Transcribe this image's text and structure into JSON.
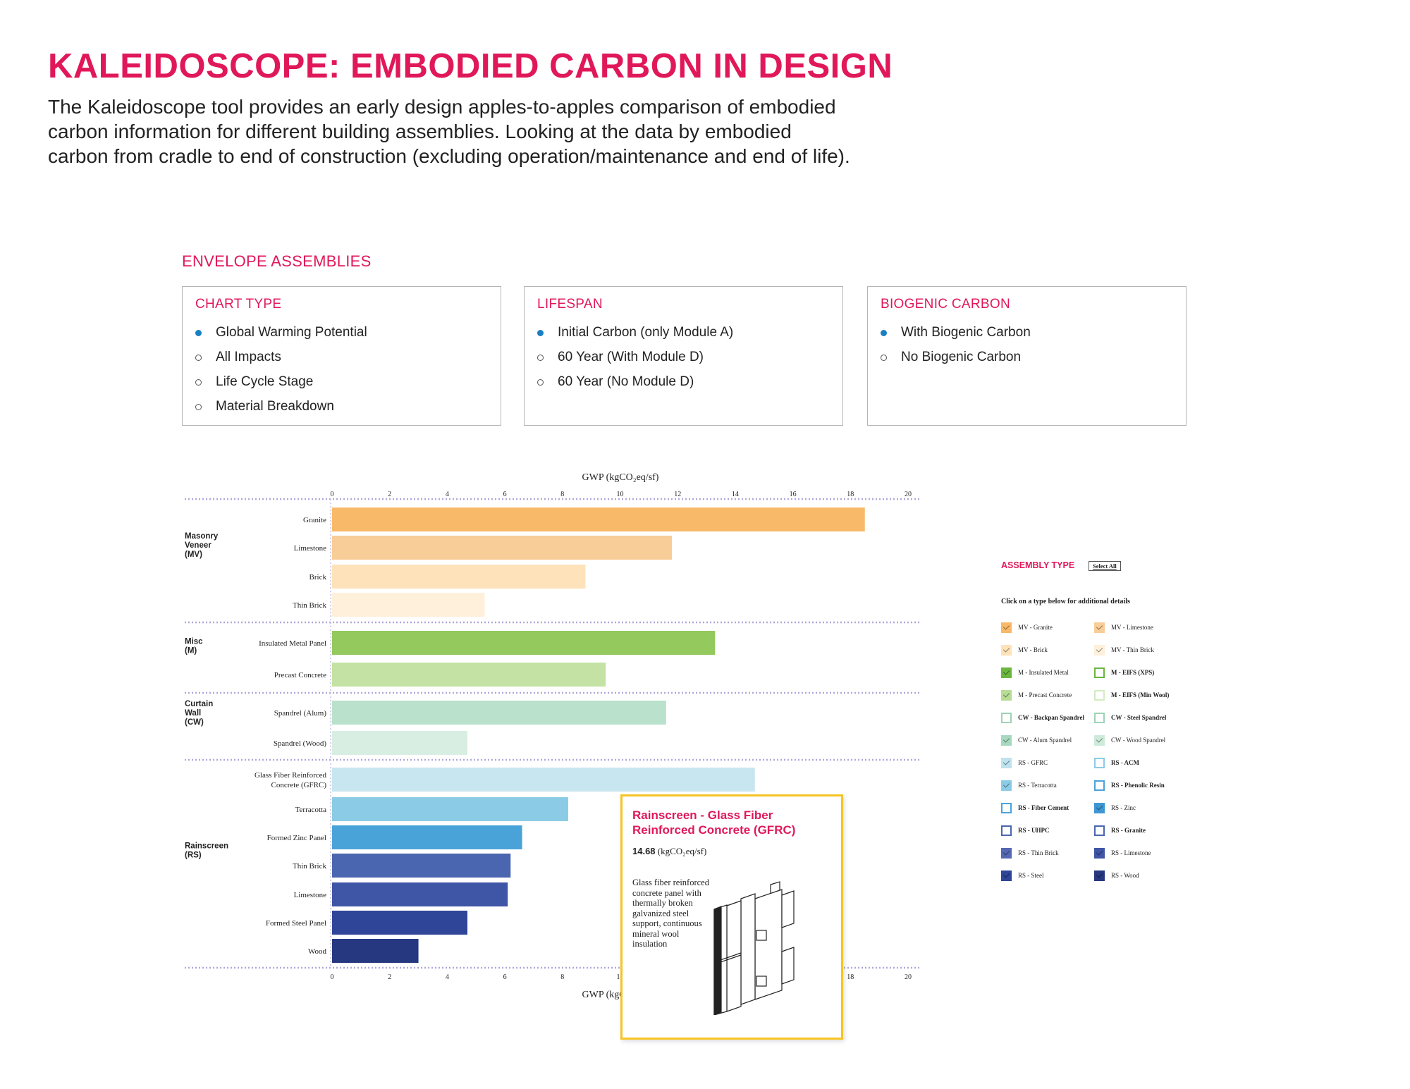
{
  "page": {
    "title": "KALEIDOSCOPE: EMBODIED CARBON IN DESIGN",
    "intro_lines": [
      "The Kaleidoscope tool provides an early design apples-to-apples comparison of embodied",
      "carbon information for different building assemblies. Looking at the data by embodied",
      "carbon from cradle to end of construction (excluding operation/maintenance and end of life)."
    ]
  },
  "section_title": "ENVELOPE ASSEMBLIES",
  "panels": [
    {
      "title": "CHART TYPE",
      "options": [
        {
          "label": "Global Warming Potential",
          "selected": true
        },
        {
          "label": "All Impacts",
          "selected": false
        },
        {
          "label": "Life Cycle Stage",
          "selected": false
        },
        {
          "label": "Material Breakdown",
          "selected": false
        }
      ]
    },
    {
      "title": "LIFESPAN",
      "options": [
        {
          "label": "Initial Carbon (only Module A)",
          "selected": true
        },
        {
          "label": "60 Year (With Module D)",
          "selected": false
        },
        {
          "label": "60 Year (No Module D)",
          "selected": false
        }
      ]
    },
    {
      "title": "BIOGENIC CARBON",
      "options": [
        {
          "label": "With Biogenic Carbon",
          "selected": true
        },
        {
          "label": "No Biogenic Carbon",
          "selected": false
        }
      ]
    }
  ],
  "chart_data": {
    "type": "bar",
    "orientation": "horizontal",
    "xlabel": "GWP (kgCO₂eq/sf)",
    "xlim": [
      0,
      20
    ],
    "xticks": [
      0,
      2,
      4,
      6,
      8,
      10,
      12,
      14,
      16,
      18,
      20
    ],
    "groups": [
      {
        "name": "Masonry Veneer (MV)",
        "name_lines": [
          "Masonry",
          "Veneer",
          "(MV)"
        ],
        "items": [
          {
            "label": "Granite",
            "value": 18.5,
            "color": "#f8b968"
          },
          {
            "label": "Limestone",
            "value": 11.8,
            "color": "#f9cd97"
          },
          {
            "label": "Brick",
            "value": 8.8,
            "color": "#fde2ba"
          },
          {
            "label": "Thin Brick",
            "value": 5.3,
            "color": "#fef0db"
          }
        ]
      },
      {
        "name": "Misc (M)",
        "name_lines": [
          "Misc",
          "(M)"
        ],
        "items": [
          {
            "label": "Insulated Metal Panel",
            "value": 13.3,
            "color": "#93c95d"
          },
          {
            "label": "Precast Concrete",
            "value": 9.5,
            "color": "#c3e2a3"
          }
        ]
      },
      {
        "name": "Curtain Wall (CW)",
        "name_lines": [
          "Curtain",
          "Wall",
          "(CW)"
        ],
        "items": [
          {
            "label": "Spandrel (Alum)",
            "value": 11.6,
            "color": "#b9e1cb"
          },
          {
            "label": "Spandrel (Wood)",
            "value": 4.7,
            "color": "#d9eee2"
          }
        ]
      },
      {
        "name": "Rainscreen (RS)",
        "name_lines": [
          "Rainscreen",
          "(RS)"
        ],
        "items": [
          {
            "label": "Glass Fiber Reinforced Concrete (GFRC)",
            "label_lines": [
              "Glass Fiber Reinforced",
              "Concrete (GFRC)"
            ],
            "value": 14.68,
            "color": "#c7e6ef"
          },
          {
            "label": "Terracotta",
            "value": 8.2,
            "color": "#8ccbe6"
          },
          {
            "label": "Formed Zinc Panel",
            "value": 6.6,
            "color": "#4aa3d8"
          },
          {
            "label": "Thin Brick",
            "value": 6.2,
            "color": "#4b66b0"
          },
          {
            "label": "Limestone",
            "value": 6.1,
            "color": "#3f55a5"
          },
          {
            "label": "Formed Steel Panel",
            "value": 4.7,
            "color": "#2e4598"
          },
          {
            "label": "Wood",
            "value": 3.0,
            "color": "#263880"
          }
        ]
      }
    ]
  },
  "legend": {
    "title": "ASSEMBLY TYPE",
    "select_all": "Select All",
    "hint": "Click on a type below for additional details",
    "items": [
      {
        "label": "MV - Granite",
        "color": "#f8b968",
        "checked": true
      },
      {
        "label": "MV - Limestone",
        "color": "#f9cd97",
        "checked": true
      },
      {
        "label": "MV - Brick",
        "color": "#fde2ba",
        "checked": true
      },
      {
        "label": "MV - Thin Brick",
        "color": "#fef0db",
        "checked": true
      },
      {
        "label": "M - Insulated Metal",
        "color": "#6ab63f",
        "checked": true
      },
      {
        "label": "M - EIFS (XPS)",
        "color": "#6ab63f",
        "checked": false
      },
      {
        "label": "M - Precast Concrete",
        "color": "#b7dc96",
        "checked": true
      },
      {
        "label": "M - EIFS (Min Wool)",
        "color": "#d3ebc1",
        "checked": false
      },
      {
        "label": "CW - Backpan Spandrel",
        "color": "#9fd3b7",
        "checked": false
      },
      {
        "label": "CW - Steel Spandrel",
        "color": "#9fd3b7",
        "checked": false
      },
      {
        "label": "CW - Alum Spandrel",
        "color": "#a7d9c0",
        "checked": true
      },
      {
        "label": "CW - Wood Spandrel",
        "color": "#cdebdb",
        "checked": true
      },
      {
        "label": "RS - GFRC",
        "color": "#bfe2ee",
        "checked": true
      },
      {
        "label": "RS - ACM",
        "color": "#8ccbe6",
        "checked": false
      },
      {
        "label": "RS - Terracotta",
        "color": "#8ccbe6",
        "checked": true
      },
      {
        "label": "RS - Phenolic Resin",
        "color": "#4aa3d8",
        "checked": false
      },
      {
        "label": "RS - Fiber Cement",
        "color": "#4aa3d8",
        "checked": false
      },
      {
        "label": "RS - Zinc",
        "color": "#3d97d3",
        "checked": true
      },
      {
        "label": "RS - UHPC",
        "color": "#4b66b0",
        "checked": false
      },
      {
        "label": "RS - Granite",
        "color": "#4b66b0",
        "checked": false
      },
      {
        "label": "RS - Thin Brick",
        "color": "#5468b3",
        "checked": true
      },
      {
        "label": "RS - Limestone",
        "color": "#3f55a5",
        "checked": true
      },
      {
        "label": "RS - Steel",
        "color": "#2e4598",
        "checked": true
      },
      {
        "label": "RS - Wood",
        "color": "#263880",
        "checked": true
      }
    ]
  },
  "tooltip": {
    "title": "Rainscreen - Glass Fiber Reinforced Concrete (GFRC)",
    "value": "14.68",
    "unit": "(kgCO₂eq/sf)",
    "description": "Glass fiber reinforced concrete panel with thermally broken galvanized steel support, continuous mineral wool insulation"
  }
}
